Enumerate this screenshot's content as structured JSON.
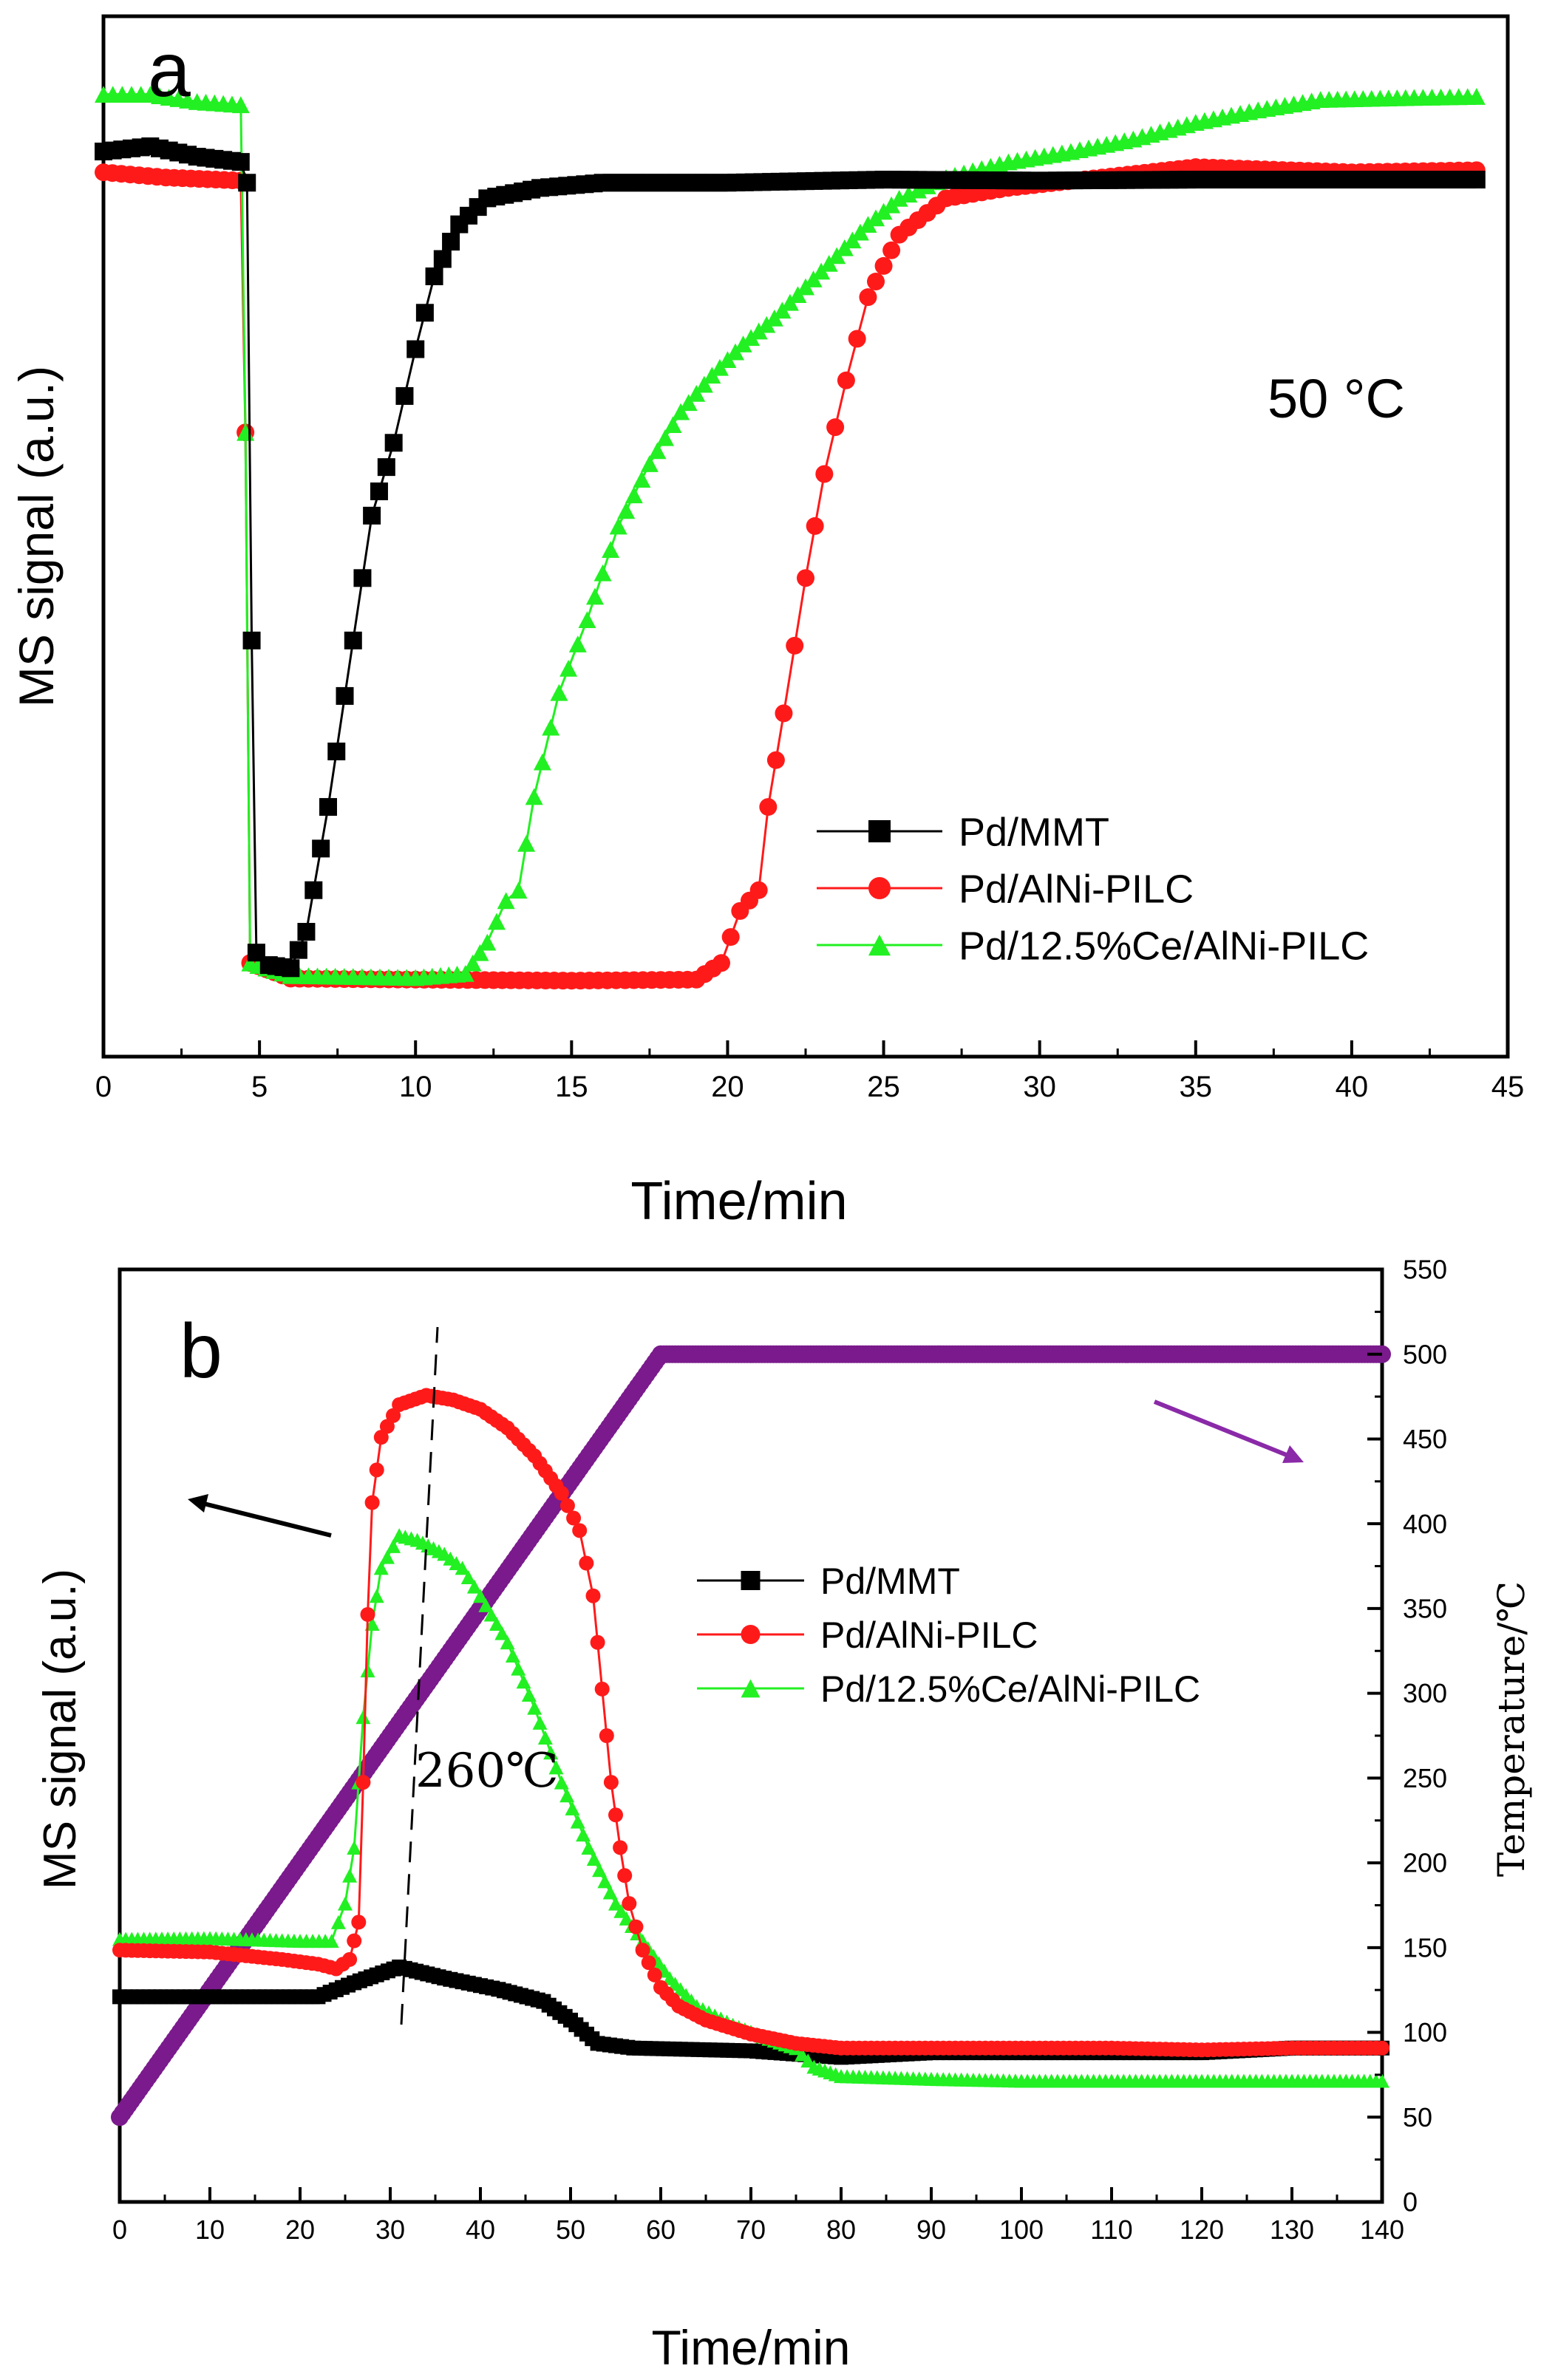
{
  "colors": {
    "pd_mmt": "#000000",
    "pd_alni": "#ff1a1a",
    "pd_ce": "#22f022",
    "temperature": "#7a1a8c",
    "arrow_left": "#000000",
    "arrow_right": "#8a2aa8"
  },
  "chart_data": [
    {
      "panel": "a",
      "type": "line",
      "panel_label": "a",
      "annotation": "50 °C",
      "xlabel": "Time/min",
      "ylabel": "MS signal (a.u.)",
      "xlim": [
        0,
        45
      ],
      "ylim": [
        0,
        100
      ],
      "xticks": [
        "0",
        "5",
        "10",
        "15",
        "20",
        "25",
        "30",
        "35",
        "40",
        "45"
      ],
      "legend_position": "bottom-right",
      "series": [
        {
          "name": "Pd/MMT",
          "marker": "square",
          "color": "#000000",
          "points": [
            [
              0,
              87
            ],
            [
              1.5,
              87.5
            ],
            [
              3,
              86.5
            ],
            [
              4.4,
              86
            ],
            [
              4.6,
              84
            ],
            [
              4.75,
              40
            ],
            [
              4.9,
              10
            ],
            [
              5.3,
              8.8
            ],
            [
              6,
              8.5
            ],
            [
              6.5,
              12
            ],
            [
              7.2,
              24
            ],
            [
              8,
              40
            ],
            [
              8.6,
              52
            ],
            [
              9.3,
              59
            ],
            [
              10,
              68
            ],
            [
              10.6,
              75
            ],
            [
              11.4,
              80
            ],
            [
              12.3,
              82.5
            ],
            [
              14,
              83.5
            ],
            [
              16,
              84
            ],
            [
              20,
              84
            ],
            [
              25,
              84.3
            ],
            [
              30,
              84.2
            ],
            [
              35,
              84.3
            ],
            [
              40,
              84.3
            ],
            [
              44,
              84.3
            ]
          ]
        },
        {
          "name": "Pd/AlNi-PILC",
          "marker": "circle",
          "color": "#ff1a1a",
          "points": [
            [
              0,
              85
            ],
            [
              2,
              84.5
            ],
            [
              4.4,
              84.2
            ],
            [
              4.55,
              60
            ],
            [
              4.7,
              9
            ],
            [
              6,
              7.5
            ],
            [
              10,
              7.4
            ],
            [
              15,
              7.3
            ],
            [
              19,
              7.4
            ],
            [
              19.8,
              9
            ],
            [
              20.4,
              14
            ],
            [
              21,
              16
            ],
            [
              21.3,
              24
            ],
            [
              21.8,
              33
            ],
            [
              22.5,
              46
            ],
            [
              23.1,
              56
            ],
            [
              23.8,
              65
            ],
            [
              24.5,
              73
            ],
            [
              25.5,
              79
            ],
            [
              27,
              82.5
            ],
            [
              29,
              83.5
            ],
            [
              32,
              84.5
            ],
            [
              35,
              85.5
            ],
            [
              40,
              85
            ],
            [
              44,
              85.2
            ]
          ]
        },
        {
          "name": "Pd/12.5%Ce/AlNi-PILC",
          "marker": "triangle",
          "color": "#22f022",
          "points": [
            [
              0,
              92.5
            ],
            [
              1.5,
              92.5
            ],
            [
              3,
              91.8
            ],
            [
              4.4,
              91.5
            ],
            [
              4.55,
              60
            ],
            [
              4.7,
              9
            ],
            [
              6,
              7.8
            ],
            [
              10,
              7.6
            ],
            [
              11.6,
              8
            ],
            [
              12.3,
              11
            ],
            [
              12.9,
              15
            ],
            [
              13.3,
              16
            ],
            [
              13.8,
              25
            ],
            [
              14.6,
              35
            ],
            [
              15.5,
              42
            ],
            [
              16.5,
              51
            ],
            [
              17.5,
              57
            ],
            [
              18.5,
              62
            ],
            [
              19.5,
              65.5
            ],
            [
              20.5,
              68.5
            ],
            [
              21.5,
              71
            ],
            [
              22.5,
              74
            ],
            [
              23.5,
              77
            ],
            [
              24.5,
              80
            ],
            [
              25.5,
              82.5
            ],
            [
              27,
              84.5
            ],
            [
              29,
              86
            ],
            [
              31,
              87
            ],
            [
              33,
              88.2
            ],
            [
              35,
              89.8
            ],
            [
              37,
              91
            ],
            [
              39,
              92
            ],
            [
              42,
              92.2
            ],
            [
              44,
              92.3
            ]
          ]
        }
      ]
    },
    {
      "panel": "b",
      "type": "line",
      "panel_label": "b",
      "annotation": "260℃",
      "xlabel": "Time/min",
      "ylabel": "MS signal (a.u.)",
      "y2label": "Temperature/℃",
      "xlim": [
        0,
        140
      ],
      "ylim": [
        0,
        100
      ],
      "y2lim": [
        0,
        550
      ],
      "xticks": [
        "0",
        "10",
        "20",
        "30",
        "40",
        "50",
        "60",
        "70",
        "80",
        "90",
        "100",
        "110",
        "120",
        "130",
        "140"
      ],
      "y2ticks": [
        "0",
        "50",
        "100",
        "150",
        "200",
        "250",
        "300",
        "350",
        "400",
        "450",
        "500",
        "550"
      ],
      "legend_position": "center-right",
      "series": [
        {
          "name": "Pd/MMT",
          "marker": "square",
          "color": "#000000",
          "points": [
            [
              0,
              22
            ],
            [
              22,
              22
            ],
            [
              26,
              23.5
            ],
            [
              31,
              25.2
            ],
            [
              36,
              24
            ],
            [
              42,
              22.8
            ],
            [
              47,
              21.5
            ],
            [
              50,
              19.5
            ],
            [
              53,
              17
            ],
            [
              57,
              16.5
            ],
            [
              70,
              16.2
            ],
            [
              80,
              15.5
            ],
            [
              90,
              16
            ],
            [
              100,
              16
            ],
            [
              110,
              16
            ],
            [
              120,
              16
            ],
            [
              130,
              16.5
            ],
            [
              140,
              16.5
            ]
          ]
        },
        {
          "name": "Pd/AlNi-PILC",
          "marker": "circle",
          "color": "#ff1a1a",
          "points": [
            [
              0,
              27
            ],
            [
              10,
              26.8
            ],
            [
              18,
              26
            ],
            [
              22,
              25.5
            ],
            [
              24,
              25
            ],
            [
              25.5,
              26
            ],
            [
              26.5,
              30
            ],
            [
              27,
              45
            ],
            [
              27.5,
              63
            ],
            [
              28,
              75
            ],
            [
              29,
              82
            ],
            [
              31,
              85.5
            ],
            [
              34,
              86.5
            ],
            [
              37,
              86
            ],
            [
              40,
              85
            ],
            [
              43,
              83
            ],
            [
              46,
              80
            ],
            [
              49,
              76
            ],
            [
              51,
              72
            ],
            [
              52.5,
              65
            ],
            [
              53.5,
              55
            ],
            [
              54.5,
              45
            ],
            [
              55.5,
              38
            ],
            [
              56.5,
              32
            ],
            [
              58,
              27
            ],
            [
              60,
              23
            ],
            [
              62,
              21
            ],
            [
              65,
              19.5
            ],
            [
              70,
              18
            ],
            [
              75,
              17
            ],
            [
              80,
              16.5
            ],
            [
              90,
              16.5
            ],
            [
              100,
              16.5
            ],
            [
              110,
              16.5
            ],
            [
              120,
              16.3
            ],
            [
              130,
              16.5
            ],
            [
              140,
              16.5
            ]
          ]
        },
        {
          "name": "Pd/12.5%Ce/AlNi-PILC",
          "marker": "triangle",
          "color": "#22f022",
          "points": [
            [
              0,
              28.2
            ],
            [
              10,
              28.3
            ],
            [
              20,
              28
            ],
            [
              23.5,
              28
            ],
            [
              25,
              32
            ],
            [
              26,
              38
            ],
            [
              27,
              52
            ],
            [
              28,
              62
            ],
            [
              29,
              68
            ],
            [
              31,
              71.5
            ],
            [
              33,
              71
            ],
            [
              36,
              69.5
            ],
            [
              38,
              68
            ],
            [
              40,
              65
            ],
            [
              43,
              60
            ],
            [
              46,
              53
            ],
            [
              49,
              45
            ],
            [
              52,
              38
            ],
            [
              55,
              32
            ],
            [
              58,
              28
            ],
            [
              61,
              24
            ],
            [
              64,
              21
            ],
            [
              68,
              19
            ],
            [
              72,
              17.5
            ],
            [
              75,
              16.5
            ],
            [
              77,
              14.5
            ],
            [
              80,
              13.5
            ],
            [
              90,
              13.2
            ],
            [
              100,
              13
            ],
            [
              110,
              13
            ],
            [
              120,
              13
            ],
            [
              130,
              13
            ],
            [
              140,
              13
            ]
          ]
        },
        {
          "name": "Temperature",
          "axis": "right",
          "marker": "circle",
          "color": "#7a1a8c",
          "points": [
            [
              0,
              50
            ],
            [
              60,
              500
            ],
            [
              140,
              500
            ]
          ]
        }
      ]
    }
  ]
}
